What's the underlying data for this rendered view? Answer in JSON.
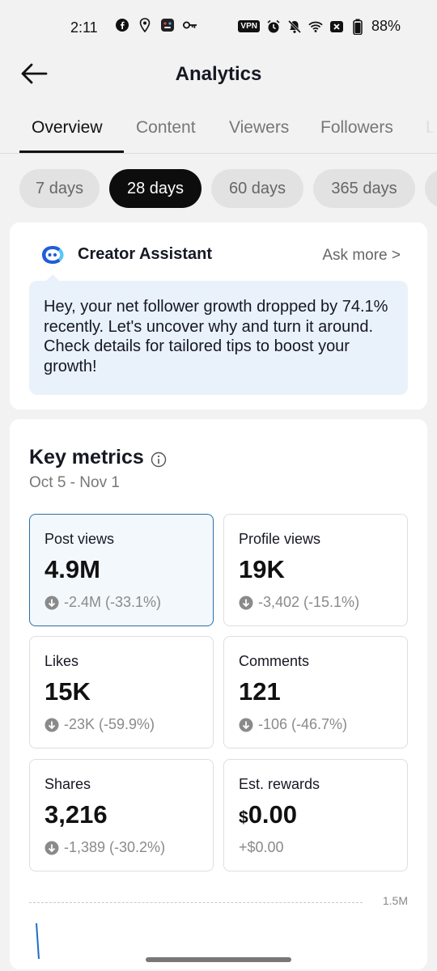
{
  "status_bar": {
    "time": "2:11",
    "vpn": "VPN",
    "battery": "88%",
    "left_icons": [
      "facebook-icon",
      "location-pin-icon",
      "app-icon",
      "key-icon"
    ],
    "right_icons": [
      "alarm-icon",
      "bell-off-icon",
      "wifi-icon",
      "close-box-icon",
      "battery-icon"
    ]
  },
  "header": {
    "title": "Analytics"
  },
  "tabs": [
    {
      "label": "Overview",
      "active": true
    },
    {
      "label": "Content",
      "active": false
    },
    {
      "label": "Viewers",
      "active": false
    },
    {
      "label": "Followers",
      "active": false
    },
    {
      "label": "L",
      "active": false
    }
  ],
  "ranges": [
    {
      "label": "7 days",
      "active": false
    },
    {
      "label": "28 days",
      "active": true
    },
    {
      "label": "60 days",
      "active": false
    },
    {
      "label": "365 days",
      "active": false
    }
  ],
  "assistant": {
    "title": "Creator Assistant",
    "ask_more": "Ask more >",
    "message": "Hey, your net follower growth dropped by 74.1% recently. Let's uncover why and turn it around. Check details for tailored tips to boost your growth!",
    "accent_color": "#1e5fd6"
  },
  "key_metrics": {
    "title": "Key metrics",
    "date_range": "Oct 5 - Nov 1",
    "metrics": [
      {
        "label": "Post views",
        "value": "4.9M",
        "change": "-2.4M (-33.1%)",
        "selected": true
      },
      {
        "label": "Profile views",
        "value": "19K",
        "change": "-3,402 (-15.1%)",
        "selected": false
      },
      {
        "label": "Likes",
        "value": "15K",
        "change": "-23K (-59.9%)",
        "selected": false
      },
      {
        "label": "Comments",
        "value": "121",
        "change": "-106 (-46.7%)",
        "selected": false
      },
      {
        "label": "Shares",
        "value": "3,216",
        "change": "-1,389 (-30.2%)",
        "selected": false
      },
      {
        "label": "Est. rewards",
        "currency": "$",
        "value": "0.00",
        "change": "+$0.00",
        "selected": false
      }
    ]
  },
  "chart": {
    "y_max_label": "1.5M",
    "line_color": "#1c6fc9"
  }
}
